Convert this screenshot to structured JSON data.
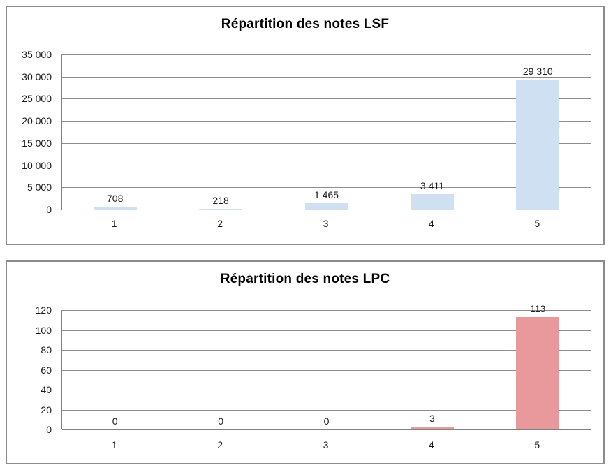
{
  "page": {
    "background": "#ffffff",
    "panel_border_color": "#8c8c8c",
    "gridline_color": "#8e8e8e",
    "axis_color": "#808080",
    "text_color": "#1a1a1a"
  },
  "chart_data": [
    {
      "type": "bar",
      "title": "Répartition des notes LSF",
      "categories": [
        "1",
        "2",
        "3",
        "4",
        "5"
      ],
      "values": [
        708,
        218,
        1465,
        3411,
        29310
      ],
      "value_labels": [
        "708",
        "218",
        "1 465",
        "3 411",
        "29 310"
      ],
      "xlabel": "",
      "ylabel": "",
      "ylim": [
        0,
        35000
      ],
      "yticks": [
        "35 000",
        "30 000",
        "25 000",
        "20 000",
        "15 000",
        "10 000",
        "5 000",
        "0"
      ],
      "ytick_values": [
        35000,
        30000,
        25000,
        20000,
        15000,
        10000,
        5000,
        0
      ],
      "bar_color": "#cee0f2",
      "grid": true,
      "legend": "none"
    },
    {
      "type": "bar",
      "title": "Répartition des notes LPC",
      "categories": [
        "1",
        "2",
        "3",
        "4",
        "5"
      ],
      "values": [
        0,
        0,
        0,
        3,
        113
      ],
      "value_labels": [
        "0",
        "0",
        "0",
        "3",
        "113"
      ],
      "xlabel": "",
      "ylabel": "",
      "ylim": [
        0,
        120
      ],
      "yticks": [
        "120",
        "100",
        "80",
        "60",
        "40",
        "20",
        "0"
      ],
      "ytick_values": [
        120,
        100,
        80,
        60,
        40,
        20,
        0
      ],
      "bar_color": "#e9999c",
      "grid": true,
      "legend": "none"
    }
  ]
}
